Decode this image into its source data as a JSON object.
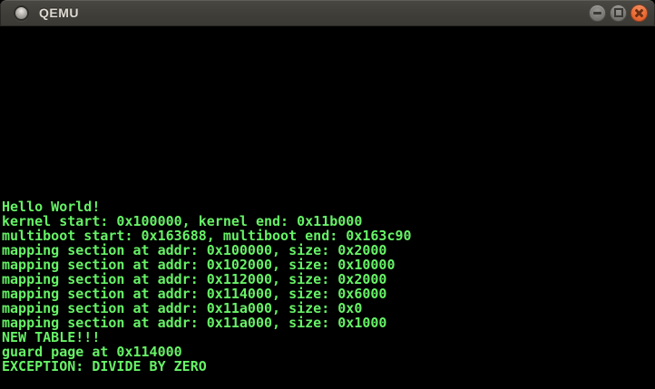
{
  "window": {
    "title": "QEMU",
    "icon": "qemu-app-icon",
    "controls": [
      {
        "name": "minimize-icon",
        "action": "minimize"
      },
      {
        "name": "maximize-icon",
        "action": "maximize"
      },
      {
        "name": "close-icon",
        "action": "close"
      }
    ]
  },
  "colors": {
    "titlebar_bg": "#403e39",
    "titlebar_text": "#dedad2",
    "close_button": "#e96a35",
    "terminal_bg": "#000000",
    "terminal_text": "#66f266"
  },
  "terminal": {
    "lines": [
      "Hello World!",
      "kernel start: 0x100000, kernel end: 0x11b000",
      "multiboot start: 0x163688, multiboot end: 0x163c90",
      "mapping section at addr: 0x100000, size: 0x2000",
      "mapping section at addr: 0x102000, size: 0x10000",
      "mapping section at addr: 0x112000, size: 0x2000",
      "mapping section at addr: 0x114000, size: 0x6000",
      "mapping section at addr: 0x11a000, size: 0x0",
      "mapping section at addr: 0x11a000, size: 0x1000",
      "NEW TABLE!!!",
      "guard page at 0x114000",
      "EXCEPTION: DIVIDE BY ZERO"
    ]
  }
}
